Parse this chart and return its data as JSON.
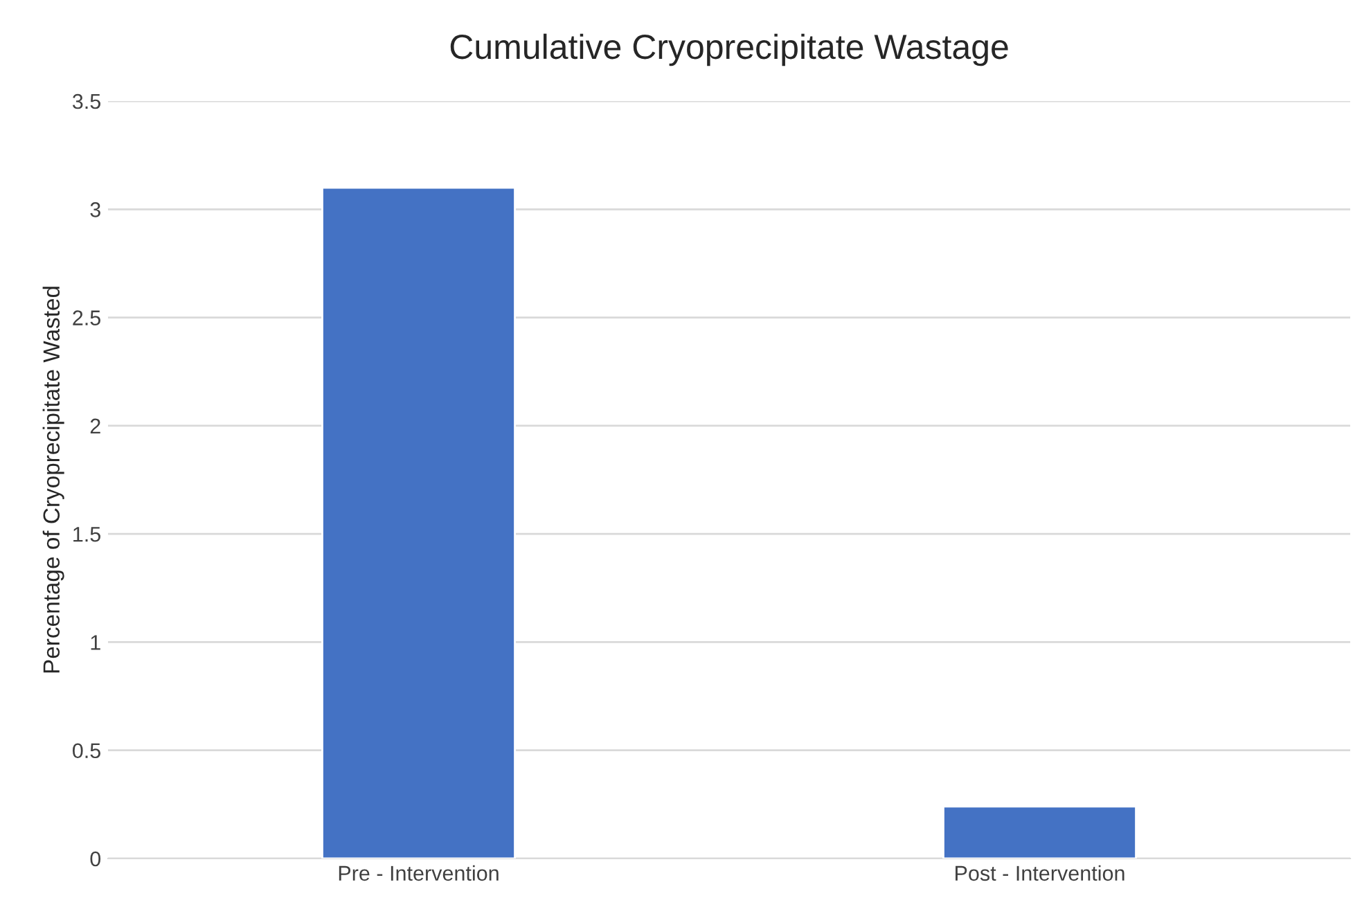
{
  "chart_data": {
    "type": "bar",
    "title": "Cumulative Cryoprecipitate Wastage",
    "ylabel": "Percentage of Cryoprecipitate Wasted",
    "categories": [
      "Pre - Intervention",
      "Post - Intervention"
    ],
    "values": [
      3.1,
      0.24
    ],
    "color": "#4472c4",
    "ylim": [
      0,
      3.5
    ],
    "yticks": [
      0,
      {
        "value": 0.5,
        "label": "0.5"
      },
      1,
      {
        "value": 1.5,
        "label": "1.5"
      },
      2,
      {
        "value": 2.5,
        "label": "2.5"
      },
      3,
      {
        "value": 3.5,
        "label": "3.5"
      }
    ],
    "grid": "y"
  }
}
